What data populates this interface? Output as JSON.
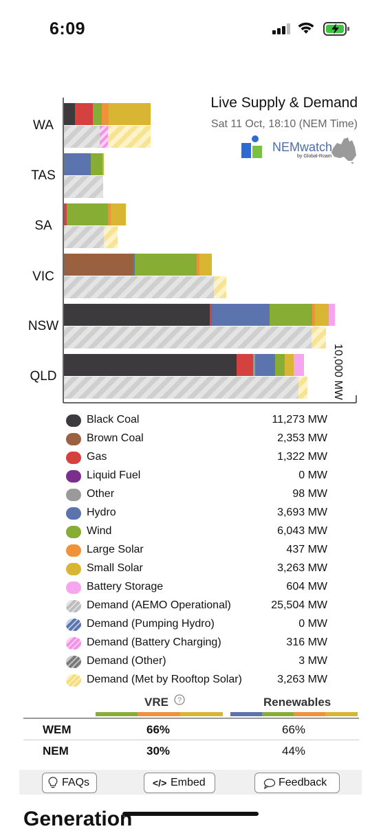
{
  "status_bar": {
    "time": "6:09"
  },
  "chart_data": {
    "type": "bar",
    "title": "Live Supply & Demand",
    "subtitle": "Sat 11 Oct, 18:10 (NEM Time)",
    "scale_label": "10,000 MW",
    "regions": [
      "WA",
      "TAS",
      "SA",
      "VIC",
      "NSW",
      "QLD"
    ],
    "logo_text": "NEMwatch",
    "logo_subtext": "by Global-Roam"
  },
  "legend": [
    {
      "name": "Black Coal",
      "value": "11,273 MW",
      "color": "#3c3a3d"
    },
    {
      "name": "Brown Coal",
      "value": "2,353 MW",
      "color": "#9a6141"
    },
    {
      "name": "Gas",
      "value": "1,322 MW",
      "color": "#d4413f"
    },
    {
      "name": "Liquid Fuel",
      "value": "0 MW",
      "color": "#7a2f8c"
    },
    {
      "name": "Other",
      "value": "98 MW",
      "color": "#9a9a9a"
    },
    {
      "name": "Hydro",
      "value": "3,693 MW",
      "color": "#5b74ae"
    },
    {
      "name": "Wind",
      "value": "6,043 MW",
      "color": "#87ad35"
    },
    {
      "name": "Large Solar",
      "value": "437 MW",
      "color": "#f0923a"
    },
    {
      "name": "Small Solar",
      "value": "3,263 MW",
      "color": "#d9b534"
    },
    {
      "name": "Battery Storage",
      "value": "604 MW",
      "color": "#f5a6ee"
    },
    {
      "name": "Demand (AEMO Operational)",
      "value": "25,504 MW",
      "color": "#d4d4d4"
    },
    {
      "name": "Demand (Pumping Hydro)",
      "value": "0 MW",
      "color": "#8aa0cc"
    },
    {
      "name": "Demand (Battery Charging)",
      "value": "316 MW",
      "color": "#f38fe6"
    },
    {
      "name": "Demand (Other)",
      "value": "3 MW",
      "color": "#9a9a9a"
    },
    {
      "name": "Demand (Met by Rooftop Solar)",
      "value": "3,263 MW",
      "color": "#faeaa4"
    }
  ],
  "share_table": {
    "vre_label": "VRE",
    "renewables_label": "Renewables",
    "rows": [
      {
        "label": "WEM",
        "vre": "66%",
        "renewables": "66%"
      },
      {
        "label": "NEM",
        "vre": "30%",
        "renewables": "44%"
      }
    ]
  },
  "buttons": {
    "faqs": "FAQs",
    "embed": "Embed",
    "feedback": "Feedback"
  },
  "next_section_title": "Generation"
}
